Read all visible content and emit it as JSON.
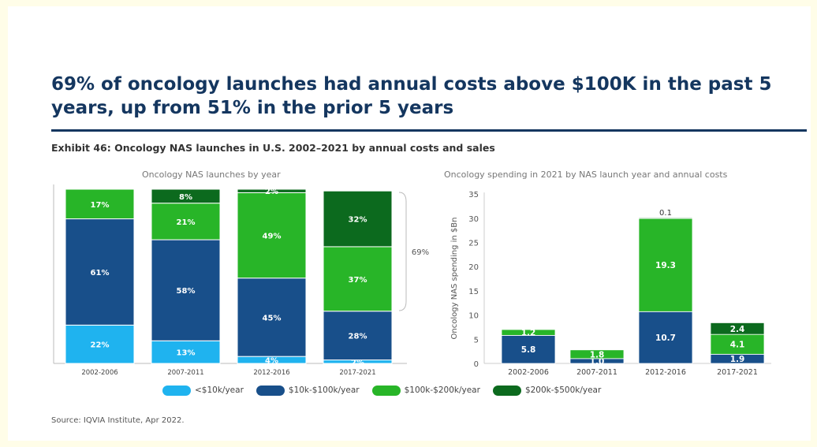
{
  "headline": "69% of oncology launches had annual costs above $100K in the past 5 years, up from 51% in the prior 5 years",
  "exhibit_title": "Exhibit 46: Oncology NAS launches in U.S. 2002–2021 by annual costs and sales",
  "source": "Source: IQVIA Institute, Apr 2022.",
  "legend": [
    {
      "label": "<$10k/year",
      "color": "#1fb3ef"
    },
    {
      "label": "$10k-$100k/year",
      "color": "#184f8a"
    },
    {
      "label": "$100k-$200k/year",
      "color": "#28b528"
    },
    {
      "label": "$200k-$500k/year",
      "color": "#0c6a1e"
    }
  ],
  "chart_data": [
    {
      "type": "bar",
      "stacked": true,
      "title": "Oncology NAS launches by year",
      "categories": [
        "2002-2006",
        "2007-2011",
        "2012-2016",
        "2017-2021"
      ],
      "series": [
        {
          "name": "<$10k/year",
          "values": [
            22,
            13,
            4,
            2
          ],
          "labels": [
            "22%",
            "13%",
            "4%",
            "2%"
          ],
          "color": "#1fb3ef"
        },
        {
          "name": "$10k-$100k/year",
          "values": [
            61,
            58,
            45,
            28
          ],
          "labels": [
            "61%",
            "58%",
            "45%",
            "28%"
          ],
          "color": "#184f8a"
        },
        {
          "name": "$100k-$200k/year",
          "values": [
            17,
            21,
            49,
            37
          ],
          "labels": [
            "17%",
            "21%",
            "49%",
            "37%"
          ],
          "color": "#28b528"
        },
        {
          "name": "$200k-$500k/year",
          "values": [
            0,
            8,
            2,
            32
          ],
          "labels": [
            "",
            "8%",
            "2%",
            "32%"
          ],
          "color": "#0c6a1e"
        }
      ],
      "ylim": [
        0,
        100
      ],
      "annotation": "69%"
    },
    {
      "type": "bar",
      "stacked": true,
      "title": "Oncology spending in 2021 by NAS launch year and annual costs",
      "ylabel": "Oncology NAS spending in $Bn",
      "categories": [
        "2002-2006",
        "2007-2011",
        "2012-2016",
        "2017-2021"
      ],
      "yticks": [
        0,
        5,
        10,
        15,
        20,
        25,
        30,
        35
      ],
      "ylim": [
        0,
        35
      ],
      "series": [
        {
          "name": "<$10k/year",
          "values": [
            0,
            0,
            0,
            0
          ],
          "labels": [
            "",
            "",
            "",
            ""
          ],
          "color": "#1fb3ef"
        },
        {
          "name": "$10k-$100k/year",
          "values": [
            5.8,
            1.0,
            10.7,
            1.9
          ],
          "labels": [
            "5.8",
            "1.0",
            "10.7",
            "1.9"
          ],
          "color": "#184f8a"
        },
        {
          "name": "$100k-$200k/year",
          "values": [
            1.2,
            1.8,
            19.3,
            4.1
          ],
          "labels": [
            "1.2",
            "1.8",
            "19.3",
            "4.1"
          ],
          "color": "#28b528"
        },
        {
          "name": "$200k-$500k/year",
          "values": [
            0,
            0,
            0.1,
            2.4
          ],
          "labels": [
            "",
            "",
            "0.1",
            "2.4"
          ],
          "color": "#0c6a1e"
        }
      ]
    }
  ]
}
